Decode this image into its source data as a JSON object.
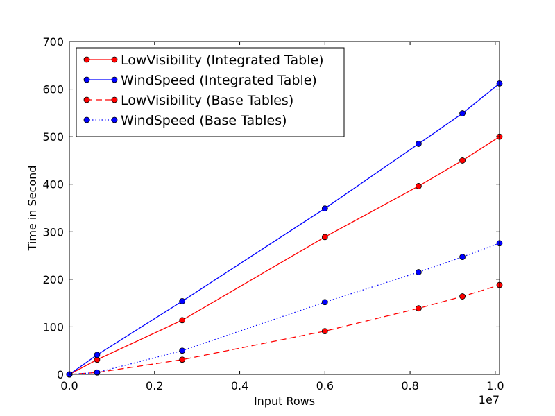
{
  "chart_data": {
    "type": "line",
    "title": "",
    "xlabel": "Input Rows",
    "ylabel": "Time in Second",
    "x_offset_label": "1e7",
    "xlim": [
      0,
      1.01
    ],
    "ylim": [
      0,
      700
    ],
    "x_ticks": [
      0.0,
      0.2,
      0.4,
      0.6,
      0.8,
      1.0
    ],
    "x_tick_labels": [
      "0.0",
      "0.2",
      "0.4",
      "0.6",
      "0.8",
      "1.0"
    ],
    "y_ticks": [
      0,
      100,
      200,
      300,
      400,
      500,
      600,
      700
    ],
    "y_tick_labels": [
      "0",
      "100",
      "200",
      "300",
      "400",
      "500",
      "600",
      "700"
    ],
    "grid": false,
    "legend_position": "top-left",
    "x": [
      0.0,
      0.065,
      0.265,
      0.6,
      0.82,
      0.923,
      1.01
    ],
    "series": [
      {
        "name": "LowVisibility (Integrated Table)",
        "color": "#ff0000",
        "linestyle": "solid",
        "marker": "circle",
        "values": [
          0,
          31,
          114,
          289,
          396,
          450,
          500
        ]
      },
      {
        "name": "WindSpeed (Integrated Table)",
        "color": "#0000ff",
        "linestyle": "solid",
        "marker": "circle",
        "values": [
          0,
          41,
          154,
          349,
          485,
          549,
          612
        ]
      },
      {
        "name": "LowVisibility (Base Tables)",
        "color": "#ff0000",
        "linestyle": "dashed",
        "marker": "circle",
        "values": [
          0,
          4,
          31,
          91,
          139,
          164,
          188
        ]
      },
      {
        "name": "WindSpeed (Base Tables)",
        "color": "#0000ff",
        "linestyle": "dotted",
        "marker": "circle",
        "values": [
          0,
          4,
          50,
          152,
          215,
          247,
          276
        ]
      }
    ]
  }
}
